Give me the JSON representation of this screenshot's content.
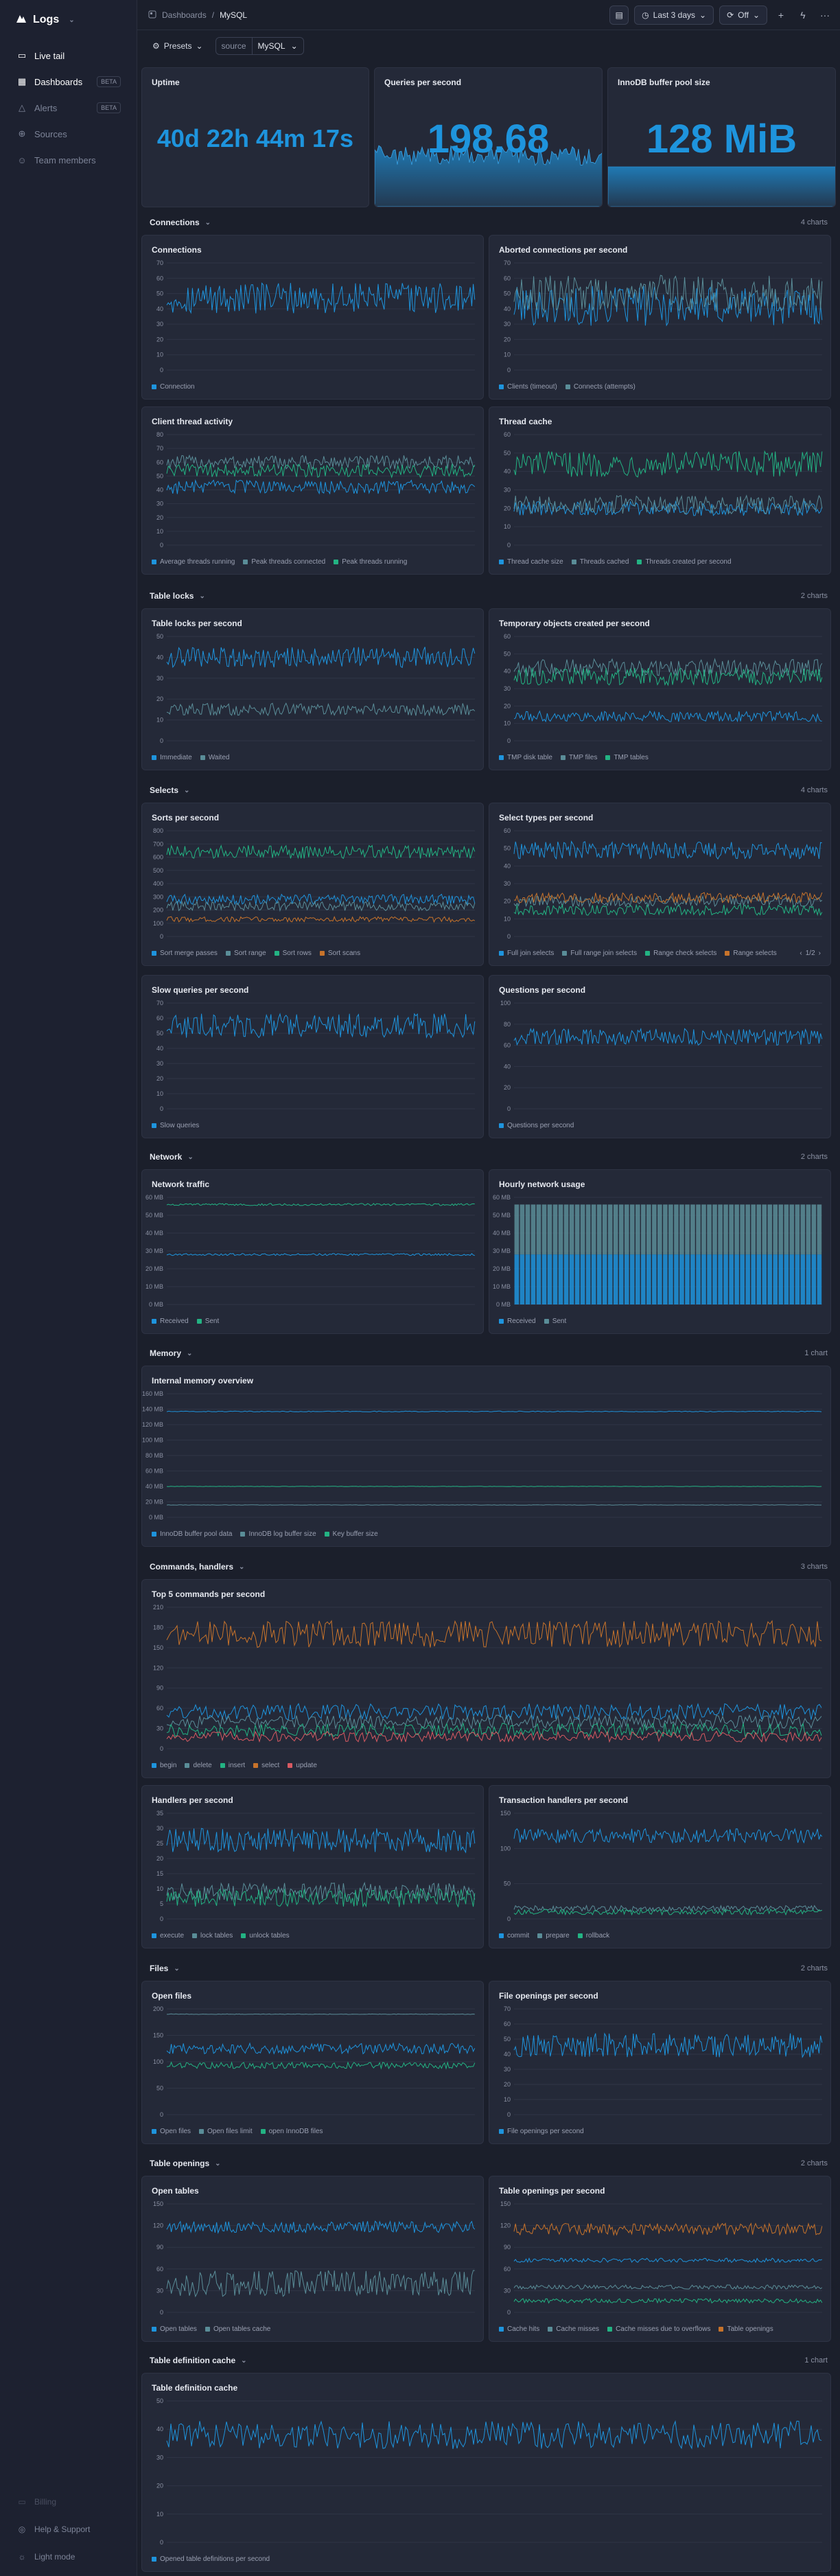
{
  "brand": {
    "name": "Logs"
  },
  "nav": [
    {
      "label": "Live tail",
      "icon": "terminal-icon",
      "badge": ""
    },
    {
      "label": "Dashboards",
      "icon": "dashboard-icon",
      "badge": "BETA"
    },
    {
      "label": "Alerts",
      "icon": "alert-icon",
      "badge": "BETA"
    },
    {
      "label": "Sources",
      "icon": "sources-icon",
      "badge": ""
    },
    {
      "label": "Team members",
      "icon": "team-icon",
      "badge": ""
    }
  ],
  "side_bottom": [
    {
      "label": "Billing",
      "icon": "billing-icon"
    },
    {
      "label": "Help & Support",
      "icon": "help-icon"
    },
    {
      "label": "Light mode",
      "icon": "sun-icon"
    }
  ],
  "breadcrumb": {
    "root": "Dashboards",
    "current": "MySQL"
  },
  "toolbar": {
    "range": "Last 3 days",
    "refresh": "Off"
  },
  "filters": {
    "presets": "Presets",
    "source_key": "source",
    "source_value": "MySQL"
  },
  "colors": {
    "blue": "#1e94dd",
    "teal": "#23b383",
    "slate": "#5a8d98",
    "orange": "#c7732b",
    "red": "#d85a62"
  },
  "stats": [
    {
      "title": "Uptime",
      "value": "40d 22h 44m 17s"
    },
    {
      "title": "Queries per second",
      "value": "198.68"
    },
    {
      "title": "InnoDB buffer pool size",
      "value": "128 MiB"
    }
  ],
  "sections": [
    {
      "title": "Connections",
      "count": "4 charts",
      "charts": [
        {
          "title": "Connections",
          "yticks": [
            "70",
            "60",
            "50",
            "40",
            "30",
            "20",
            "10",
            "0"
          ],
          "ymax": 70,
          "series": [
            {
              "name": "Connection",
              "color": "blue",
              "base": 47,
              "amp": 10
            }
          ]
        },
        {
          "title": "Aborted connections per second",
          "yticks": [
            "70",
            "60",
            "50",
            "40",
            "30",
            "20",
            "10",
            "0"
          ],
          "ymax": 70,
          "series": [
            {
              "name": "Clients (timeout)",
              "color": "blue",
              "base": 42,
              "amp": 13
            },
            {
              "name": "Connects (attempts)",
              "color": "slate",
              "base": 50,
              "amp": 12
            }
          ]
        },
        {
          "title": "Client thread activity",
          "yticks": [
            "80",
            "70",
            "60",
            "50",
            "40",
            "30",
            "20",
            "10",
            "0"
          ],
          "ymax": 80,
          "series": [
            {
              "name": "Average threads running",
              "color": "blue",
              "base": 42,
              "amp": 5
            },
            {
              "name": "Peak threads connected",
              "color": "slate",
              "base": 60,
              "amp": 5
            },
            {
              "name": "Peak threads running",
              "color": "teal",
              "base": 54,
              "amp": 5
            }
          ]
        },
        {
          "title": "Thread cache",
          "yticks": [
            "60",
            "50",
            "40",
            "30",
            "20",
            "10",
            "0"
          ],
          "ymax": 60,
          "series": [
            {
              "name": "Thread cache size",
              "color": "blue",
              "base": 20,
              "amp": 4
            },
            {
              "name": "Threads cached",
              "color": "slate",
              "base": 22,
              "amp": 5
            },
            {
              "name": "Threads created per second",
              "color": "teal",
              "base": 44,
              "amp": 7
            }
          ]
        }
      ]
    },
    {
      "title": "Table locks",
      "count": "2 charts",
      "charts": [
        {
          "title": "Table locks per second",
          "yticks": [
            "50",
            "40",
            "30",
            "20",
            "10",
            "0"
          ],
          "ymax": 50,
          "series": [
            {
              "name": "Immediate",
              "color": "blue",
              "base": 40,
              "amp": 5
            },
            {
              "name": "Waited",
              "color": "slate",
              "base": 15,
              "amp": 3
            }
          ]
        },
        {
          "title": "Temporary objects created per second",
          "yticks": [
            "60",
            "50",
            "40",
            "30",
            "20",
            "10",
            "0"
          ],
          "ymax": 60,
          "series": [
            {
              "name": "TMP disk table",
              "color": "blue",
              "base": 14,
              "amp": 3
            },
            {
              "name": "TMP files",
              "color": "slate",
              "base": 42,
              "amp": 5
            },
            {
              "name": "TMP tables",
              "color": "teal",
              "base": 37,
              "amp": 5
            }
          ]
        }
      ]
    },
    {
      "title": "Selects",
      "count": "4 charts",
      "charts": [
        {
          "title": "Sorts per second",
          "yticks": [
            "800",
            "700",
            "600",
            "500",
            "400",
            "300",
            "200",
            "100",
            "0"
          ],
          "ymax": 800,
          "series": [
            {
              "name": "Sort merge passes",
              "color": "blue",
              "base": 280,
              "amp": 40
            },
            {
              "name": "Sort range",
              "color": "slate",
              "base": 230,
              "amp": 35
            },
            {
              "name": "Sort rows",
              "color": "teal",
              "base": 640,
              "amp": 50
            },
            {
              "name": "Sort scans",
              "color": "orange",
              "base": 130,
              "amp": 20
            }
          ]
        },
        {
          "title": "Select types per second",
          "yticks": [
            "60",
            "50",
            "40",
            "30",
            "20",
            "10",
            "0"
          ],
          "ymax": 60,
          "series": [
            {
              "name": "Full join selects",
              "color": "blue",
              "base": 49,
              "amp": 5
            },
            {
              "name": "Full range join selects",
              "color": "slate",
              "base": 20,
              "amp": 3
            },
            {
              "name": "Range check selects",
              "color": "teal",
              "base": 15,
              "amp": 3
            },
            {
              "name": "Range selects",
              "color": "orange",
              "base": 22,
              "amp": 3
            }
          ],
          "pager": "1/2"
        },
        {
          "title": "Slow queries per second",
          "yticks": [
            "70",
            "60",
            "50",
            "40",
            "30",
            "20",
            "10",
            "0"
          ],
          "ymax": 70,
          "series": [
            {
              "name": "Slow queries",
              "color": "blue",
              "base": 55,
              "amp": 8
            }
          ]
        },
        {
          "title": "Questions per second",
          "yticks": [
            "100",
            "80",
            "60",
            "40",
            "20",
            "0"
          ],
          "ymax": 100,
          "series": [
            {
              "name": "Questions per second",
              "color": "blue",
              "base": 68,
              "amp": 8
            }
          ]
        }
      ]
    },
    {
      "title": "Network",
      "count": "2 charts",
      "charts": [
        {
          "title": "Network traffic",
          "yticks": [
            "60 MB",
            "50 MB",
            "40 MB",
            "30 MB",
            "20 MB",
            "10 MB",
            "0 MB"
          ],
          "ymax": 60,
          "series": [
            {
              "name": "Received",
              "color": "blue",
              "base": 28,
              "amp": 0.6
            },
            {
              "name": "Sent",
              "color": "teal",
              "base": 56,
              "amp": 0.6
            }
          ]
        },
        {
          "title": "Hourly network usage",
          "yticks": [
            "60 MB",
            "50 MB",
            "40 MB",
            "30 MB",
            "20 MB",
            "10 MB",
            "0 MB"
          ],
          "ymax": 60,
          "bars": true,
          "series": [
            {
              "name": "Received",
              "color": "blue",
              "base": 28,
              "amp": 0
            },
            {
              "name": "Sent",
              "color": "slate",
              "base": 56,
              "amp": 0
            }
          ]
        }
      ]
    },
    {
      "title": "Memory",
      "count": "1 chart",
      "charts": [
        {
          "title": "Internal memory overview",
          "yticks": [
            "160 MB",
            "140 MB",
            "120 MB",
            "100 MB",
            "80 MB",
            "60 MB",
            "40 MB",
            "20 MB",
            "0 MB"
          ],
          "ymax": 160,
          "series": [
            {
              "name": "InnoDB buffer pool data",
              "color": "blue",
              "base": 137,
              "amp": 0.5
            },
            {
              "name": "InnoDB log buffer size",
              "color": "slate",
              "base": 16,
              "amp": 0.3
            },
            {
              "name": "Key buffer size",
              "color": "teal",
              "base": 40,
              "amp": 0.3
            }
          ]
        }
      ]
    },
    {
      "title": "Commands, handlers",
      "count": "3 charts",
      "charts": [
        {
          "title": "Top 5 commands per second",
          "yticks": [
            "210",
            "180",
            "150",
            "120",
            "90",
            "60",
            "30",
            "0"
          ],
          "ymax": 210,
          "series": [
            {
              "name": "begin",
              "color": "blue",
              "base": 55,
              "amp": 12
            },
            {
              "name": "delete",
              "color": "slate",
              "base": 40,
              "amp": 10
            },
            {
              "name": "insert",
              "color": "teal",
              "base": 28,
              "amp": 10
            },
            {
              "name": "select",
              "color": "orange",
              "base": 170,
              "amp": 20
            },
            {
              "name": "update",
              "color": "red",
              "base": 18,
              "amp": 8
            }
          ]
        },
        {
          "title": "Handlers per second",
          "yticks": [
            "35",
            "30",
            "25",
            "20",
            "15",
            "10",
            "5",
            "0"
          ],
          "ymax": 35,
          "series": [
            {
              "name": "execute",
              "color": "blue",
              "base": 26,
              "amp": 4
            },
            {
              "name": "lock tables",
              "color": "slate",
              "base": 9,
              "amp": 3
            },
            {
              "name": "unlock tables",
              "color": "teal",
              "base": 7,
              "amp": 3
            }
          ]
        },
        {
          "title": "Transaction handlers per second",
          "yticks": [
            "150",
            "100",
            "50",
            "0"
          ],
          "ymax": 150,
          "series": [
            {
              "name": "commit",
              "color": "blue",
              "base": 118,
              "amp": 10
            },
            {
              "name": "prepare",
              "color": "slate",
              "base": 15,
              "amp": 4
            },
            {
              "name": "rollback",
              "color": "teal",
              "base": 10,
              "amp": 4
            }
          ]
        }
      ]
    },
    {
      "title": "Files",
      "count": "2 charts",
      "charts": [
        {
          "title": "Open files",
          "yticks": [
            "200",
            "150",
            "100",
            "50",
            "0"
          ],
          "ymax": 200,
          "series": [
            {
              "name": "Open files",
              "color": "blue",
              "base": 125,
              "amp": 10
            },
            {
              "name": "Open files limit",
              "color": "slate",
              "base": 190,
              "amp": 0.5
            },
            {
              "name": "open InnoDB files",
              "color": "teal",
              "base": 93,
              "amp": 6
            }
          ]
        },
        {
          "title": "File openings per second",
          "yticks": [
            "70",
            "60",
            "50",
            "40",
            "30",
            "20",
            "10",
            "0"
          ],
          "ymax": 70,
          "series": [
            {
              "name": "File openings per second",
              "color": "blue",
              "base": 46,
              "amp": 8
            }
          ]
        }
      ]
    },
    {
      "title": "Table openings",
      "count": "2 charts",
      "charts": [
        {
          "title": "Open tables",
          "yticks": [
            "150",
            "120",
            "90",
            "60",
            "30",
            "0"
          ],
          "ymax": 150,
          "series": [
            {
              "name": "Open tables",
              "color": "blue",
              "base": 118,
              "amp": 8
            },
            {
              "name": "Open tables cache",
              "color": "slate",
              "base": 40,
              "amp": 18
            }
          ]
        },
        {
          "title": "Table openings per second",
          "yticks": [
            "150",
            "120",
            "90",
            "60",
            "30",
            "0"
          ],
          "ymax": 150,
          "series": [
            {
              "name": "Cache hits",
              "color": "blue",
              "base": 72,
              "amp": 3
            },
            {
              "name": "Cache misses",
              "color": "slate",
              "base": 35,
              "amp": 3
            },
            {
              "name": "Cache misses due to overflows",
              "color": "teal",
              "base": 16,
              "amp": 3
            },
            {
              "name": "Table openings",
              "color": "orange",
              "base": 115,
              "amp": 8
            }
          ]
        }
      ]
    },
    {
      "title": "Table definition cache",
      "count": "1 chart",
      "charts": [
        {
          "title": "Table definition cache",
          "yticks": [
            "50",
            "40",
            "30",
            "20",
            "10",
            "0"
          ],
          "ymax": 50,
          "series": [
            {
              "name": "Opened table definitions per second",
              "color": "blue",
              "base": 38,
              "amp": 5
            }
          ]
        }
      ]
    }
  ]
}
